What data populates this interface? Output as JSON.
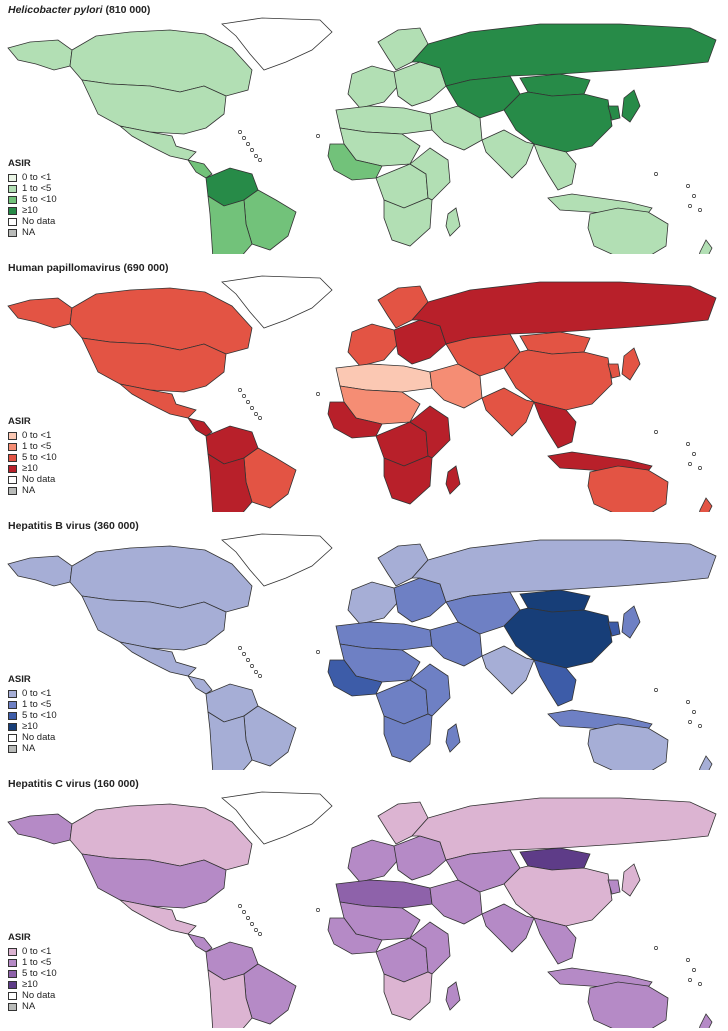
{
  "panels": [
    {
      "title_pathogen": "Helicobacter pylori",
      "title_count": " (810 000)",
      "italic": true,
      "colors": {
        "c0": "#eaf5e6",
        "c1": "#b2dfb4",
        "c2": "#72c27a",
        "c3": "#278b48",
        "nodata": "#ffffff",
        "na": "#b9bbb9"
      },
      "legend": {
        "title": "ASIR",
        "items": [
          {
            "label": "0 to <1",
            "key": "c0"
          },
          {
            "label": "1 to <5",
            "key": "c1"
          },
          {
            "label": "5 to <10",
            "key": "c2"
          },
          {
            "label": "≥10",
            "key": "c3"
          },
          {
            "label": "No data",
            "key": "nodata"
          },
          {
            "label": "NA",
            "key": "na"
          }
        ]
      },
      "regions": {
        "canada": "c1",
        "usa": "c1",
        "alaska": "c1",
        "greenland": "nodata",
        "mexico": "c1",
        "central_america": "c2",
        "south_america_north": "c3",
        "brazil": "c2",
        "south_america_south": "c2",
        "europe_west": "c1",
        "europe_east": "c1",
        "scandinavia": "c1",
        "north_africa": "c1",
        "sahara": "c1",
        "west_africa": "c2",
        "central_africa": "c1",
        "east_africa": "c1",
        "southern_africa": "c1",
        "madagascar": "c1",
        "middle_east": "c1",
        "russia": "c3",
        "central_asia": "c3",
        "china": "c3",
        "mongolia": "c3",
        "india": "c1",
        "southeast_asia": "c1",
        "japan": "c3",
        "korea": "c3",
        "indonesia": "c1",
        "australia": "c1",
        "new_zealand": "c1"
      }
    },
    {
      "title_pathogen": "Human papillomavirus",
      "title_count": " (690 000)",
      "italic": false,
      "colors": {
        "c0": "#fbc8b3",
        "c1": "#f58d74",
        "c2": "#e35444",
        "c3": "#b8202a",
        "nodata": "#ffffff",
        "na": "#b9bbb9"
      },
      "legend": {
        "title": "ASIR",
        "items": [
          {
            "label": "0 to <1",
            "key": "c0"
          },
          {
            "label": "1 to <5",
            "key": "c1"
          },
          {
            "label": "5 to <10",
            "key": "c2"
          },
          {
            "label": "≥10",
            "key": "c3"
          },
          {
            "label": "No data",
            "key": "nodata"
          },
          {
            "label": "NA",
            "key": "na"
          }
        ]
      },
      "regions": {
        "canada": "c2",
        "usa": "c2",
        "alaska": "c2",
        "greenland": "nodata",
        "mexico": "c2",
        "central_america": "c3",
        "south_america_north": "c3",
        "brazil": "c2",
        "south_america_south": "c3",
        "europe_west": "c2",
        "europe_east": "c3",
        "scandinavia": "c2",
        "north_africa": "c0",
        "sahara": "c1",
        "west_africa": "c3",
        "central_africa": "c3",
        "east_africa": "c3",
        "southern_africa": "c3",
        "madagascar": "c3",
        "middle_east": "c1",
        "russia": "c3",
        "central_asia": "c2",
        "china": "c2",
        "mongolia": "c2",
        "india": "c2",
        "southeast_asia": "c3",
        "japan": "c2",
        "korea": "c2",
        "indonesia": "c3",
        "australia": "c2",
        "new_zealand": "c2"
      }
    },
    {
      "title_pathogen": "Hepatitis B virus",
      "title_count": " (360 000)",
      "italic": false,
      "colors": {
        "c0": "#a6aed6",
        "c1": "#6e80c4",
        "c2": "#3d5ca8",
        "c3": "#173e78",
        "nodata": "#ffffff",
        "na": "#b9bbb9"
      },
      "legend": {
        "title": "ASIR",
        "items": [
          {
            "label": "0 to <1",
            "key": "c0"
          },
          {
            "label": "1 to <5",
            "key": "c1"
          },
          {
            "label": "5 to <10",
            "key": "c2"
          },
          {
            "label": "≥10",
            "key": "c3"
          },
          {
            "label": "No data",
            "key": "nodata"
          },
          {
            "label": "NA",
            "key": "na"
          }
        ]
      },
      "regions": {
        "canada": "c0",
        "usa": "c0",
        "alaska": "c0",
        "greenland": "nodata",
        "mexico": "c0",
        "central_america": "c0",
        "south_america_north": "c0",
        "brazil": "c0",
        "south_america_south": "c0",
        "europe_west": "c0",
        "europe_east": "c1",
        "scandinavia": "c0",
        "north_africa": "c1",
        "sahara": "c1",
        "west_africa": "c2",
        "central_africa": "c1",
        "east_africa": "c1",
        "southern_africa": "c1",
        "madagascar": "c1",
        "middle_east": "c1",
        "russia": "c0",
        "central_asia": "c1",
        "china": "c3",
        "mongolia": "c3",
        "india": "c0",
        "southeast_asia": "c2",
        "japan": "c1",
        "korea": "c2",
        "indonesia": "c1",
        "australia": "c0",
        "new_zealand": "c0"
      }
    },
    {
      "title_pathogen": "Hepatitis C virus",
      "title_count": " (160 000)",
      "italic": false,
      "colors": {
        "c0": "#dcb4d2",
        "c1": "#b58ac6",
        "c2": "#8e62aa",
        "c3": "#5e3c88",
        "nodata": "#ffffff",
        "na": "#b9bbb9"
      },
      "legend": {
        "title": "ASIR",
        "items": [
          {
            "label": "0 to <1",
            "key": "c0"
          },
          {
            "label": "1 to <5",
            "key": "c1"
          },
          {
            "label": "5 to <10",
            "key": "c2"
          },
          {
            "label": "≥10",
            "key": "c3"
          },
          {
            "label": "No data",
            "key": "nodata"
          },
          {
            "label": "NA",
            "key": "na"
          }
        ]
      },
      "regions": {
        "canada": "c0",
        "usa": "c1",
        "alaska": "c1",
        "greenland": "nodata",
        "mexico": "c0",
        "central_america": "c1",
        "south_america_north": "c1",
        "brazil": "c1",
        "south_america_south": "c0",
        "europe_west": "c1",
        "europe_east": "c1",
        "scandinavia": "c0",
        "north_africa": "c2",
        "sahara": "c1",
        "west_africa": "c1",
        "central_africa": "c1",
        "east_africa": "c1",
        "southern_africa": "c0",
        "madagascar": "c1",
        "middle_east": "c1",
        "russia": "c0",
        "central_asia": "c1",
        "china": "c0",
        "mongolia": "c3",
        "india": "c1",
        "southeast_asia": "c1",
        "japan": "c0",
        "korea": "c1",
        "indonesia": "c1",
        "australia": "c1",
        "new_zealand": "c1"
      }
    }
  ]
}
